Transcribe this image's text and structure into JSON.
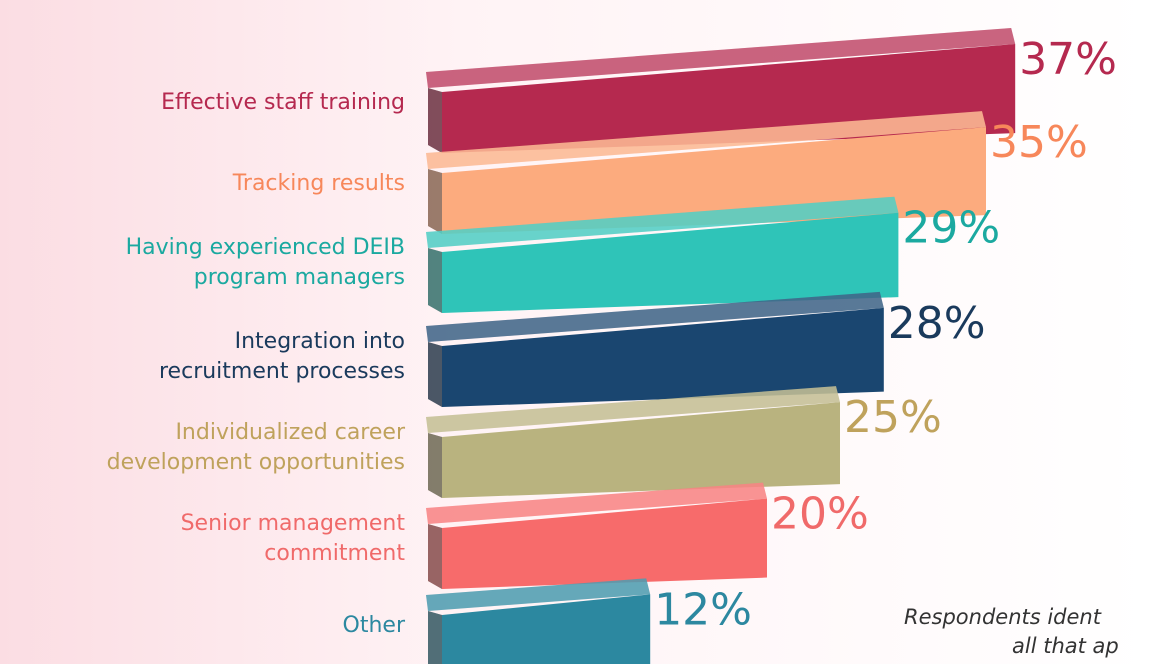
{
  "chart_data": {
    "type": "bar3d",
    "categories": [
      [
        "Effective staff training"
      ],
      [
        "Tracking results"
      ],
      [
        "Having experienced DEIB",
        "program managers"
      ],
      [
        "Integration into",
        "recruitment processes"
      ],
      [
        "Individualized career",
        "development opportunities"
      ],
      [
        "Senior management",
        "commitment"
      ],
      [
        "Other"
      ]
    ],
    "values": [
      37,
      35,
      29,
      28,
      25,
      20,
      12
    ],
    "value_labels": [
      "37%",
      "35%",
      "29%",
      "28%",
      "25%",
      "20%",
      "12%"
    ],
    "colors": [
      "#b5294f",
      "#fcab7e",
      "#2fc4b8",
      "#1a4670",
      "#b9b37f",
      "#f76b6b",
      "#2c88a0"
    ],
    "label_colors": [
      "#b5294f",
      "#f7875a",
      "#1ba9a0",
      "#1a3a5c",
      "#bfa25c",
      "#f06a6a",
      "#2c88a0"
    ],
    "footnote": [
      "Respondents ident",
      "all that ap"
    ]
  }
}
